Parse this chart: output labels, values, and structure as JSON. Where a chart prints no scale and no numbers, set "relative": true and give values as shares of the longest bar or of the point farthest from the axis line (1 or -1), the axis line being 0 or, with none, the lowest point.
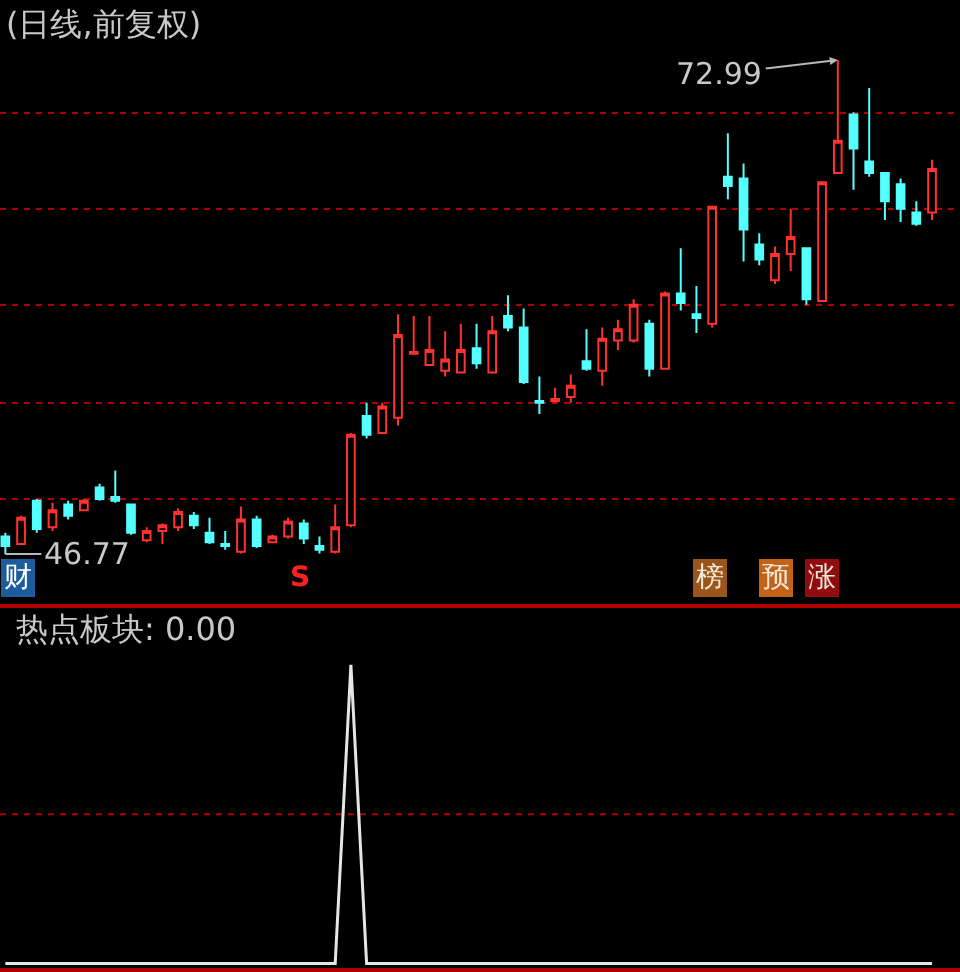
{
  "chart_data": [
    {
      "type": "candlestick",
      "title": "(日线,前复权)",
      "categories": [
        null,
        null,
        null,
        null,
        null,
        null,
        null,
        null,
        null,
        null,
        null,
        null,
        null,
        null,
        null,
        null,
        null,
        null,
        null,
        null,
        null,
        null,
        null,
        null,
        null,
        null,
        null,
        null,
        null,
        null,
        null,
        null,
        null,
        null,
        null,
        null,
        null,
        null,
        null,
        null,
        null,
        null,
        null,
        null,
        null,
        null,
        null,
        null,
        null,
        null,
        null,
        null,
        null,
        null,
        null,
        null,
        null,
        null,
        null,
        null
      ],
      "ohlc": [
        [
          47.7,
          47.9,
          46.77,
          47.2
        ],
        [
          47.3,
          48.8,
          47.3,
          48.7
        ],
        [
          49.6,
          49.7,
          47.9,
          48.1
        ],
        [
          48.2,
          49.5,
          48.0,
          49.1
        ],
        [
          49.4,
          49.6,
          48.6,
          48.8
        ],
        [
          49.1,
          49.7,
          49.1,
          49.6
        ],
        [
          50.3,
          50.5,
          49.6,
          49.7
        ],
        [
          49.8,
          51.2,
          49.5,
          49.6
        ],
        [
          49.4,
          49.4,
          47.8,
          47.9
        ],
        [
          47.5,
          48.2,
          47.4,
          48.0
        ],
        [
          48.0,
          48.4,
          47.3,
          48.3
        ],
        [
          48.2,
          49.2,
          48.0,
          49.0
        ],
        [
          48.8,
          49.0,
          48.1,
          48.3
        ],
        [
          47.9,
          48.7,
          47.3,
          47.4
        ],
        [
          47.3,
          48.0,
          47.0,
          47.2
        ],
        [
          46.9,
          49.3,
          46.8,
          48.6
        ],
        [
          48.6,
          48.8,
          47.1,
          47.2
        ],
        [
          47.4,
          47.8,
          47.4,
          47.7
        ],
        [
          47.7,
          48.7,
          47.6,
          48.5
        ],
        [
          48.4,
          48.6,
          47.3,
          47.6
        ],
        [
          47.2,
          47.7,
          46.8,
          47.0
        ],
        [
          46.9,
          49.4,
          46.8,
          48.2
        ],
        [
          48.3,
          53.2,
          48.2,
          53.1
        ],
        [
          54.1,
          54.8,
          52.9,
          53.1
        ],
        [
          53.2,
          54.8,
          53.2,
          54.6
        ],
        [
          54.0,
          59.5,
          53.6,
          58.4
        ],
        [
          57.4,
          59.4,
          57.4,
          57.5
        ],
        [
          56.8,
          59.4,
          56.8,
          57.6
        ],
        [
          56.5,
          58.6,
          56.2,
          57.1
        ],
        [
          56.4,
          59.0,
          56.4,
          57.6
        ],
        [
          57.7,
          59.0,
          56.6,
          56.9
        ],
        [
          56.4,
          59.4,
          56.4,
          58.6
        ],
        [
          59.4,
          60.5,
          58.6,
          58.8
        ],
        [
          58.8,
          59.8,
          55.8,
          55.9
        ],
        [
          54.9,
          56.2,
          54.2,
          54.8
        ],
        [
          54.9,
          55.6,
          54.8,
          55.0
        ],
        [
          55.1,
          56.3,
          54.8,
          55.7
        ],
        [
          57.0,
          58.7,
          56.5,
          56.6
        ],
        [
          56.5,
          58.8,
          55.7,
          58.2
        ],
        [
          58.1,
          59.2,
          57.6,
          58.7
        ],
        [
          58.1,
          60.3,
          58.0,
          60.0
        ],
        [
          59.0,
          59.2,
          56.2,
          56.6
        ],
        [
          56.6,
          60.7,
          56.6,
          60.6
        ],
        [
          60.6,
          63.0,
          59.7,
          60.1
        ],
        [
          59.5,
          61.0,
          58.5,
          59.3
        ],
        [
          59.0,
          65.2,
          58.8,
          65.2
        ],
        [
          66.8,
          69.1,
          65.6,
          66.3
        ],
        [
          66.7,
          67.5,
          62.3,
          64.0
        ],
        [
          63.2,
          63.8,
          62.1,
          62.4
        ],
        [
          61.3,
          63.1,
          61.1,
          62.7
        ],
        [
          62.7,
          65.1,
          61.8,
          63.6
        ],
        [
          63.0,
          63.0,
          60.0,
          60.3
        ],
        [
          60.2,
          66.5,
          60.2,
          66.5
        ],
        [
          67.0,
          72.99,
          67.0,
          68.7
        ],
        [
          70.1,
          70.2,
          66.1,
          68.3
        ],
        [
          67.6,
          71.5,
          66.8,
          67.0
        ],
        [
          67.0,
          67.0,
          64.5,
          65.5
        ],
        [
          66.4,
          66.7,
          64.4,
          65.1
        ],
        [
          64.9,
          65.5,
          64.2,
          64.3
        ],
        [
          64.9,
          67.7,
          64.5,
          67.2
        ]
      ],
      "colors": [
        "#54ffff",
        "#ff3232",
        "#54ffff",
        "#ff3232",
        "#54ffff",
        "#ff3232",
        "#54ffff",
        "#54ffff",
        "#54ffff",
        "#ff3232",
        "#ff3232",
        "#ff3232",
        "#54ffff",
        "#54ffff",
        "#54ffff",
        "#ff3232",
        "#54ffff",
        "#ff3232",
        "#ff3232",
        "#54ffff",
        "#54ffff",
        "#ff3232",
        "#ff3232",
        "#54ffff",
        "#ff3232",
        "#ff3232",
        "#ff3232",
        "#ff3232",
        "#ff3232",
        "#ff3232",
        "#54ffff",
        "#ff3232",
        "#54ffff",
        "#54ffff",
        "#54ffff",
        "#ff3232",
        "#ff3232",
        "#54ffff",
        "#ff3232",
        "#ff3232",
        "#ff3232",
        "#54ffff",
        "#ff3232",
        "#54ffff",
        "#54ffff",
        "#ff3232",
        "#54ffff",
        "#54ffff",
        "#54ffff",
        "#ff3232",
        "#ff3232",
        "#54ffff",
        "#ff3232",
        "#ff3232",
        "#54ffff",
        "#54ffff",
        "#54ffff",
        "#54ffff",
        "#54ffff",
        "#ff3232"
      ],
      "yticks": [
        {
          "value": 49.7,
          "label": null
        },
        {
          "value": 54.8,
          "label": null
        },
        {
          "value": 60.0,
          "label": null
        },
        {
          "value": 65.1,
          "label": null
        },
        {
          "value": 70.2,
          "label": null
        }
      ],
      "grid": "y",
      "annotations": [
        "72.99",
        "46.77",
        "财",
        "S",
        "榜",
        "预",
        "涨"
      ]
    },
    {
      "type": "line",
      "title": "热点板块: 0.00",
      "categories": [
        null,
        null,
        null,
        null,
        null,
        null,
        null,
        null,
        null,
        null,
        null,
        null,
        null,
        null,
        null,
        null,
        null,
        null,
        null,
        null,
        null,
        null,
        null,
        null,
        null,
        null,
        null,
        null,
        null,
        null,
        null,
        null,
        null,
        null,
        null,
        null,
        null,
        null,
        null,
        null,
        null,
        null,
        null,
        null,
        null,
        null,
        null,
        null,
        null,
        null,
        null,
        null,
        null,
        null,
        null,
        null,
        null,
        null,
        null,
        null
      ],
      "values": [
        0,
        0,
        0,
        0,
        0,
        0,
        0,
        0,
        0,
        0,
        0,
        0,
        0,
        0,
        0,
        0,
        0,
        0,
        0,
        0,
        0,
        0,
        1,
        0,
        0,
        0,
        0,
        0,
        0,
        0,
        0,
        0,
        0,
        0,
        0,
        0,
        0,
        0,
        0,
        0,
        0,
        0,
        0,
        0,
        0,
        0,
        0,
        0,
        0,
        0,
        0,
        0,
        0,
        0,
        0,
        0,
        0,
        0,
        0,
        0
      ],
      "color": "#e6e6e6",
      "relative": true,
      "ref_lines": [
        {
          "axis": "y",
          "value": 0.5,
          "color": "#b00000",
          "line_style": "dotted"
        }
      ]
    }
  ]
}
